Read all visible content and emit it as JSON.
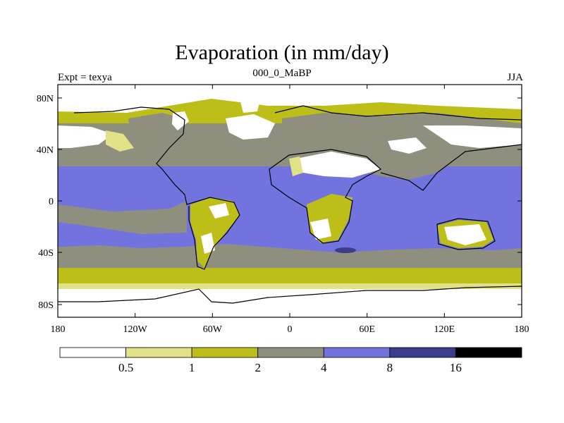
{
  "header": {
    "title": "Evaporation (in mm/day)",
    "left_label": "Expt = texya",
    "center_label": "000_0_MaBP",
    "right_label": "JJA"
  },
  "axes": {
    "y_ticks": [
      "80N",
      "40N",
      "0",
      "40S",
      "80S"
    ],
    "x_ticks": [
      "180",
      "120W",
      "60W",
      "0",
      "60E",
      "120E",
      "180"
    ]
  },
  "colorbar": {
    "labels": [
      "0.5",
      "1",
      "2",
      "4",
      "8",
      "16"
    ],
    "colors": [
      "#ffffff",
      "#e1e187",
      "#bebe19",
      "#8f8f80",
      "#7373e0",
      "#3c3c8c",
      "#000000"
    ]
  },
  "map_colors": {
    "white": "#ffffff",
    "pale": "#e1e187",
    "olive": "#bebe19",
    "gray": "#8f8f80",
    "blue": "#7373e0",
    "navy": "#3c3c8c"
  }
}
